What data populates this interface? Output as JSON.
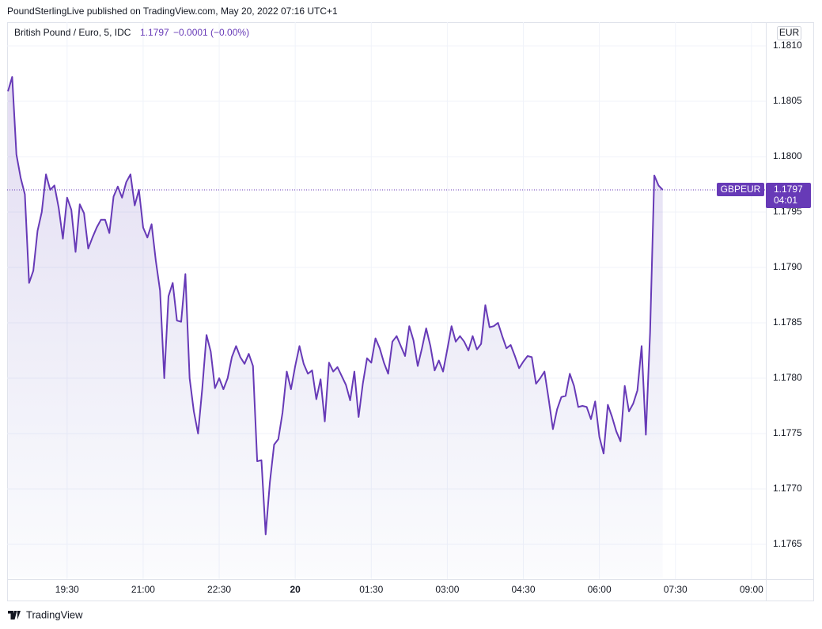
{
  "header": {
    "title": "PoundSterlingLive published on TradingView.com, May 20, 2022 07:16 UTC+1"
  },
  "footer": {
    "brand": "TradingView"
  },
  "chart_data": {
    "type": "line",
    "title": "British Pound / Euro, 5, IDC",
    "last_price": 1.1797,
    "change": "−0.0001 (−0.00%)",
    "symbol": "GBPEUR",
    "countdown": "04:01",
    "currency": "EUR",
    "color": "#673ab7",
    "grid": true,
    "xlim": [
      1099,
      1997
    ],
    "xticks": [
      {
        "value": 1170,
        "label": "19:30"
      },
      {
        "value": 1260,
        "label": "21:00"
      },
      {
        "value": 1350,
        "label": "22:30"
      },
      {
        "value": 1440,
        "label": "20"
      },
      {
        "value": 1530,
        "label": "01:30"
      },
      {
        "value": 1620,
        "label": "03:00"
      },
      {
        "value": 1710,
        "label": "04:30"
      },
      {
        "value": 1800,
        "label": "06:00"
      },
      {
        "value": 1890,
        "label": "07:30"
      },
      {
        "value": 1980,
        "label": "09:00"
      }
    ],
    "ylim": [
      1.1762,
      1.1812
    ],
    "yticks": [
      {
        "value": 1.181,
        "label": "1.1810"
      },
      {
        "value": 1.1805,
        "label": "1.1805"
      },
      {
        "value": 1.18,
        "label": "1.1800"
      },
      {
        "value": 1.1795,
        "label": "1.1795"
      },
      {
        "value": 1.179,
        "label": "1.1790"
      },
      {
        "value": 1.1785,
        "label": "1.1785"
      },
      {
        "value": 1.178,
        "label": "1.1780"
      },
      {
        "value": 1.1775,
        "label": "1.1775"
      },
      {
        "value": 1.177,
        "label": "1.1770"
      },
      {
        "value": 1.1765,
        "label": "1.1765"
      }
    ],
    "x": [
      1100,
      1105,
      1110,
      1115,
      1120,
      1125,
      1130,
      1135,
      1140,
      1145,
      1150,
      1155,
      1160,
      1165,
      1170,
      1175,
      1180,
      1185,
      1190,
      1195,
      1200,
      1205,
      1210,
      1215,
      1220,
      1225,
      1230,
      1235,
      1240,
      1245,
      1250,
      1255,
      1260,
      1265,
      1270,
      1275,
      1280,
      1285,
      1290,
      1295,
      1300,
      1305,
      1310,
      1315,
      1320,
      1325,
      1330,
      1335,
      1340,
      1345,
      1350,
      1355,
      1360,
      1365,
      1370,
      1375,
      1380,
      1385,
      1390,
      1395,
      1400,
      1405,
      1410,
      1415,
      1420,
      1425,
      1430,
      1435,
      1440,
      1445,
      1450,
      1455,
      1460,
      1465,
      1470,
      1475,
      1480,
      1485,
      1490,
      1495,
      1500,
      1505,
      1510,
      1515,
      1520,
      1525,
      1530,
      1535,
      1540,
      1545,
      1550,
      1555,
      1560,
      1565,
      1570,
      1575,
      1580,
      1585,
      1590,
      1595,
      1600,
      1605,
      1610,
      1615,
      1620,
      1625,
      1630,
      1635,
      1640,
      1645,
      1650,
      1655,
      1660,
      1665,
      1670,
      1675,
      1680,
      1685,
      1690,
      1695,
      1700,
      1705,
      1710,
      1715,
      1720,
      1725,
      1730,
      1735,
      1740,
      1745,
      1750,
      1755,
      1760,
      1765,
      1770,
      1775,
      1780,
      1785,
      1790,
      1795,
      1800,
      1805,
      1810,
      1815,
      1820,
      1825,
      1830,
      1835,
      1840,
      1845,
      1850,
      1855,
      1860,
      1865,
      1870,
      1875
    ],
    "values": [
      1.18059,
      1.18072,
      1.18002,
      1.17981,
      1.17966,
      1.17886,
      1.17897,
      1.17933,
      1.1795,
      1.17984,
      1.1797,
      1.17974,
      1.17954,
      1.17926,
      1.17963,
      1.17952,
      1.17914,
      1.17957,
      1.17949,
      1.17917,
      1.17927,
      1.17936,
      1.17943,
      1.17943,
      1.17931,
      1.17964,
      1.17973,
      1.17963,
      1.17977,
      1.17984,
      1.17956,
      1.1797,
      1.17936,
      1.17927,
      1.17939,
      1.17906,
      1.17879,
      1.178,
      1.17874,
      1.17886,
      1.17852,
      1.17851,
      1.17894,
      1.178,
      1.1777,
      1.1775,
      1.17791,
      1.17839,
      1.17824,
      1.17791,
      1.178,
      1.1779,
      1.178,
      1.17819,
      1.17829,
      1.17819,
      1.17813,
      1.17822,
      1.17811,
      1.17725,
      1.17726,
      1.17659,
      1.17706,
      1.1774,
      1.17745,
      1.17769,
      1.17806,
      1.1779,
      1.17811,
      1.17829,
      1.17813,
      1.17804,
      1.17807,
      1.17781,
      1.17799,
      1.17761,
      1.17814,
      1.17806,
      1.1781,
      1.17802,
      1.17794,
      1.1778,
      1.17806,
      1.17765,
      1.17795,
      1.17818,
      1.17814,
      1.17836,
      1.17827,
      1.17814,
      1.17804,
      1.17833,
      1.17838,
      1.17829,
      1.1782,
      1.17847,
      1.17834,
      1.17811,
      1.17827,
      1.17845,
      1.17829,
      1.17807,
      1.17816,
      1.17806,
      1.17826,
      1.17847,
      1.17833,
      1.17838,
      1.17833,
      1.17825,
      1.17838,
      1.17826,
      1.17831,
      1.17866,
      1.17846,
      1.17847,
      1.1785,
      1.17838,
      1.17827,
      1.1783,
      1.1782,
      1.17809,
      1.17815,
      1.1782,
      1.17819,
      1.17795,
      1.178,
      1.17806,
      1.17781,
      1.17754,
      1.17772,
      1.17783,
      1.17784,
      1.17804,
      1.17793,
      1.17774,
      1.17775,
      1.17774,
      1.17763,
      1.17779,
      1.17747,
      1.17732,
      1.17776,
      1.17765,
      1.17752,
      1.17743,
      1.17793,
      1.1777,
      1.17777,
      1.17789,
      1.17829,
      1.17749,
      1.17841,
      1.17983,
      1.17974,
      1.1797
    ]
  }
}
